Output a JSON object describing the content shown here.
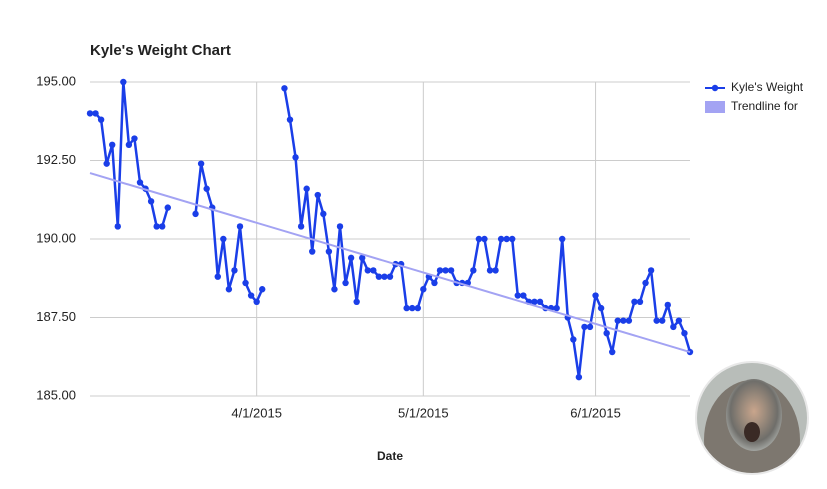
{
  "chart_data": {
    "type": "line",
    "title": "Kyle's Weight Chart",
    "x_label": "Date",
    "xlim": [
      "2015-03-02",
      "2015-06-18"
    ],
    "xticks": [
      {
        "value": "2015-04-01",
        "label": "4/1/2015"
      },
      {
        "value": "2015-05-01",
        "label": "5/1/2015"
      },
      {
        "value": "2015-06-01",
        "label": "6/1/2015"
      }
    ],
    "ylim": [
      185,
      195
    ],
    "yticks": [
      {
        "value": 185,
        "label": "185.00"
      },
      {
        "value": 187.5,
        "label": "187.50"
      },
      {
        "value": 190,
        "label": "190.00"
      },
      {
        "value": 192.5,
        "label": "192.50"
      },
      {
        "value": 195,
        "label": "195.00"
      }
    ],
    "grid": true,
    "legend": "right",
    "x": [
      "2015-03-02",
      "2015-03-03",
      "2015-03-04",
      "2015-03-05",
      "2015-03-06",
      "2015-03-07",
      "2015-03-08",
      "2015-03-09",
      "2015-03-10",
      "2015-03-11",
      "2015-03-12",
      "2015-03-13",
      "2015-03-14",
      "2015-03-15",
      "2015-03-16",
      "2015-03-17",
      "2015-03-21",
      "2015-03-22",
      "2015-03-23",
      "2015-03-24",
      "2015-03-25",
      "2015-03-26",
      "2015-03-27",
      "2015-03-28",
      "2015-03-29",
      "2015-03-30",
      "2015-03-31",
      "2015-04-01",
      "2015-04-02",
      "2015-04-03",
      "2015-04-06",
      "2015-04-07",
      "2015-04-08",
      "2015-04-09",
      "2015-04-10",
      "2015-04-11",
      "2015-04-12",
      "2015-04-13",
      "2015-04-14",
      "2015-04-15",
      "2015-04-16",
      "2015-04-17",
      "2015-04-18",
      "2015-04-19",
      "2015-04-20",
      "2015-04-21",
      "2015-04-22",
      "2015-04-23",
      "2015-04-24",
      "2015-04-25",
      "2015-04-26",
      "2015-04-27",
      "2015-04-28",
      "2015-04-29",
      "2015-04-30",
      "2015-05-01",
      "2015-05-02",
      "2015-05-03",
      "2015-05-04",
      "2015-05-05",
      "2015-05-06",
      "2015-05-07",
      "2015-05-08",
      "2015-05-09",
      "2015-05-10",
      "2015-05-11",
      "2015-05-12",
      "2015-05-13",
      "2015-05-14",
      "2015-05-15",
      "2015-05-16",
      "2015-05-17",
      "2015-05-18",
      "2015-05-19",
      "2015-05-20",
      "2015-05-21",
      "2015-05-22",
      "2015-05-23",
      "2015-05-24",
      "2015-05-25",
      "2015-05-26",
      "2015-05-27",
      "2015-05-28",
      "2015-05-29",
      "2015-05-30",
      "2015-05-31",
      "2015-06-01",
      "2015-06-02",
      "2015-06-03",
      "2015-06-04",
      "2015-06-05",
      "2015-06-06",
      "2015-06-07",
      "2015-06-08",
      "2015-06-09",
      "2015-06-10",
      "2015-06-11",
      "2015-06-12",
      "2015-06-13",
      "2015-06-14",
      "2015-06-15",
      "2015-06-16",
      "2015-06-17",
      "2015-06-18"
    ],
    "series": [
      {
        "name": "Kyle's Weight",
        "color": "#1a3ee8",
        "values": [
          194.0,
          194.0,
          193.8,
          192.4,
          193.0,
          190.4,
          195.0,
          193.0,
          193.2,
          191.8,
          191.6,
          191.2,
          190.4,
          190.4,
          191.0,
          null,
          190.8,
          192.4,
          191.6,
          191.0,
          188.8,
          190.0,
          188.4,
          189.0,
          190.4,
          188.6,
          188.2,
          188.0,
          188.4,
          null,
          194.8,
          193.8,
          192.6,
          190.4,
          191.6,
          189.6,
          191.4,
          190.8,
          189.6,
          188.4,
          190.4,
          188.6,
          189.4,
          188.0,
          189.4,
          189.0,
          189.0,
          188.8,
          188.8,
          188.8,
          189.2,
          189.2,
          187.8,
          187.8,
          187.8,
          188.4,
          188.8,
          188.6,
          189.0,
          189.0,
          189.0,
          188.6,
          188.6,
          188.6,
          189.0,
          190.0,
          190.0,
          189.0,
          189.0,
          190.0,
          190.0,
          190.0,
          188.2,
          188.2,
          188.0,
          188.0,
          188.0,
          187.8,
          187.8,
          187.8,
          190.0,
          187.5,
          186.8,
          185.6,
          187.2,
          187.2,
          188.2,
          187.8,
          187.0,
          186.4,
          187.4,
          187.4,
          187.4,
          188.0,
          188.0,
          188.6,
          189.0,
          187.4,
          187.4,
          187.9,
          187.2,
          187.4,
          187.0,
          186.4
        ]
      },
      {
        "name": "Trendline for",
        "color": "#a3a3f3",
        "x": [
          "2015-03-02",
          "2015-06-18"
        ],
        "values": [
          192.1,
          186.4
        ]
      }
    ]
  }
}
